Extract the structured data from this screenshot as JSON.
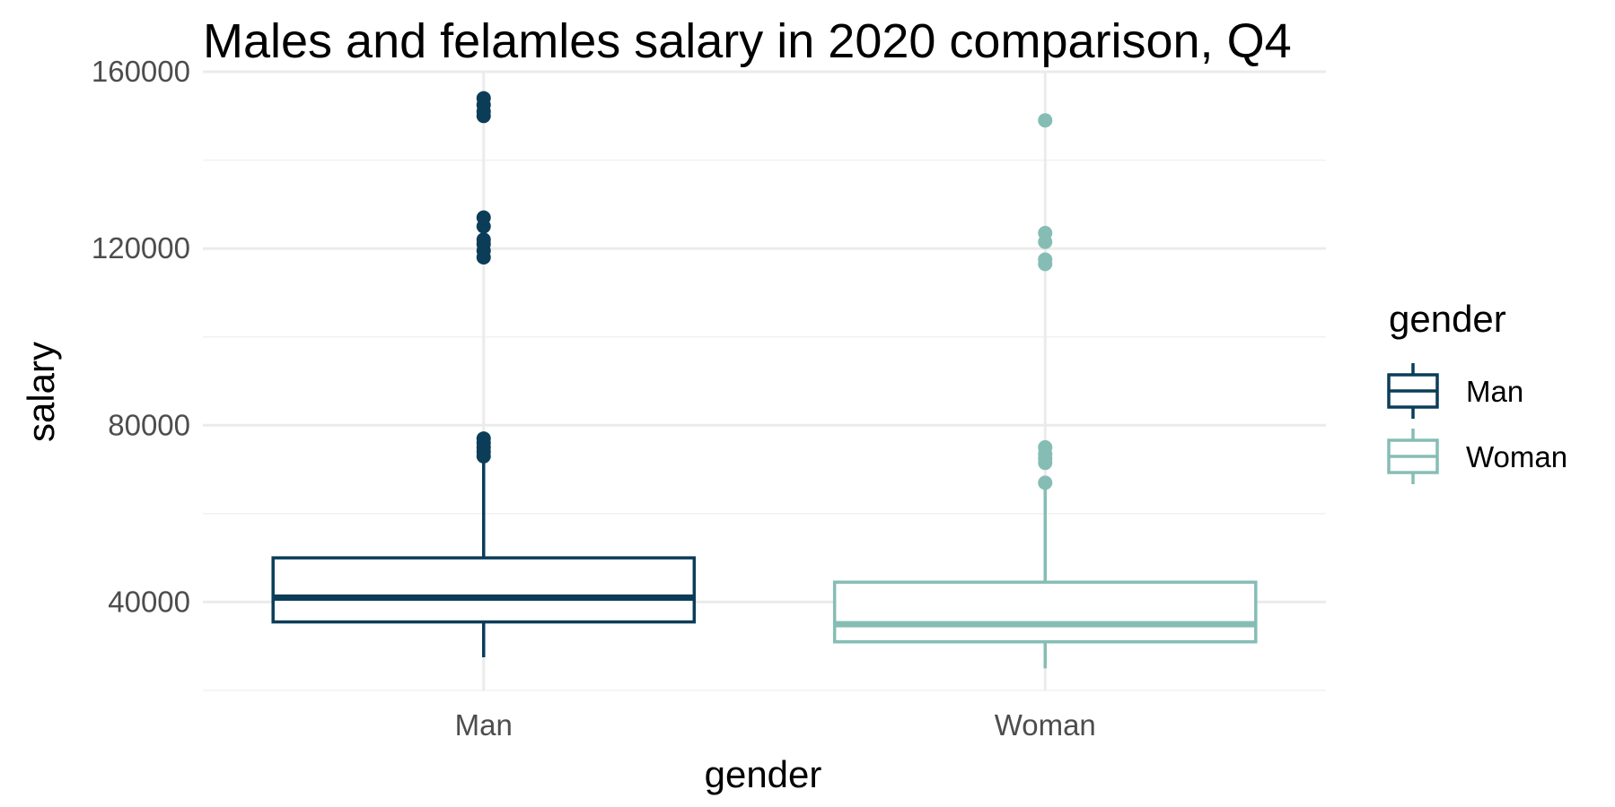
{
  "chart_data": {
    "type": "box",
    "title": "Males and felamles salary in 2020 comparison, Q4",
    "xlabel": "gender",
    "ylabel": "salary",
    "categories": [
      "Man",
      "Woman"
    ],
    "ylim": [
      20000,
      160000
    ],
    "yticks": [
      40000,
      80000,
      120000,
      160000
    ],
    "yticks_labels": [
      "40000",
      "80000",
      "120000",
      "160000"
    ],
    "grid": true,
    "legend": {
      "title": "gender",
      "position": "right",
      "entries": [
        "Man",
        "Woman"
      ]
    },
    "series": [
      {
        "name": "Man",
        "color": "#0b3d59",
        "whisker_low": 27500,
        "q1": 35500,
        "median": 41000,
        "q3": 50000,
        "whisker_high": 72000,
        "outliers": [
          73000,
          74000,
          75000,
          76000,
          77000,
          118000,
          119500,
          121000,
          122000,
          125000,
          127000,
          150000,
          151000,
          152500,
          154000
        ]
      },
      {
        "name": "Woman",
        "color": "#85bdb5",
        "whisker_low": 25000,
        "q1": 31000,
        "median": 35000,
        "q3": 44500,
        "whisker_high": 66500,
        "outliers": [
          67000,
          71500,
          72500,
          73500,
          75000,
          116500,
          117500,
          121500,
          123500,
          149000
        ]
      }
    ]
  }
}
